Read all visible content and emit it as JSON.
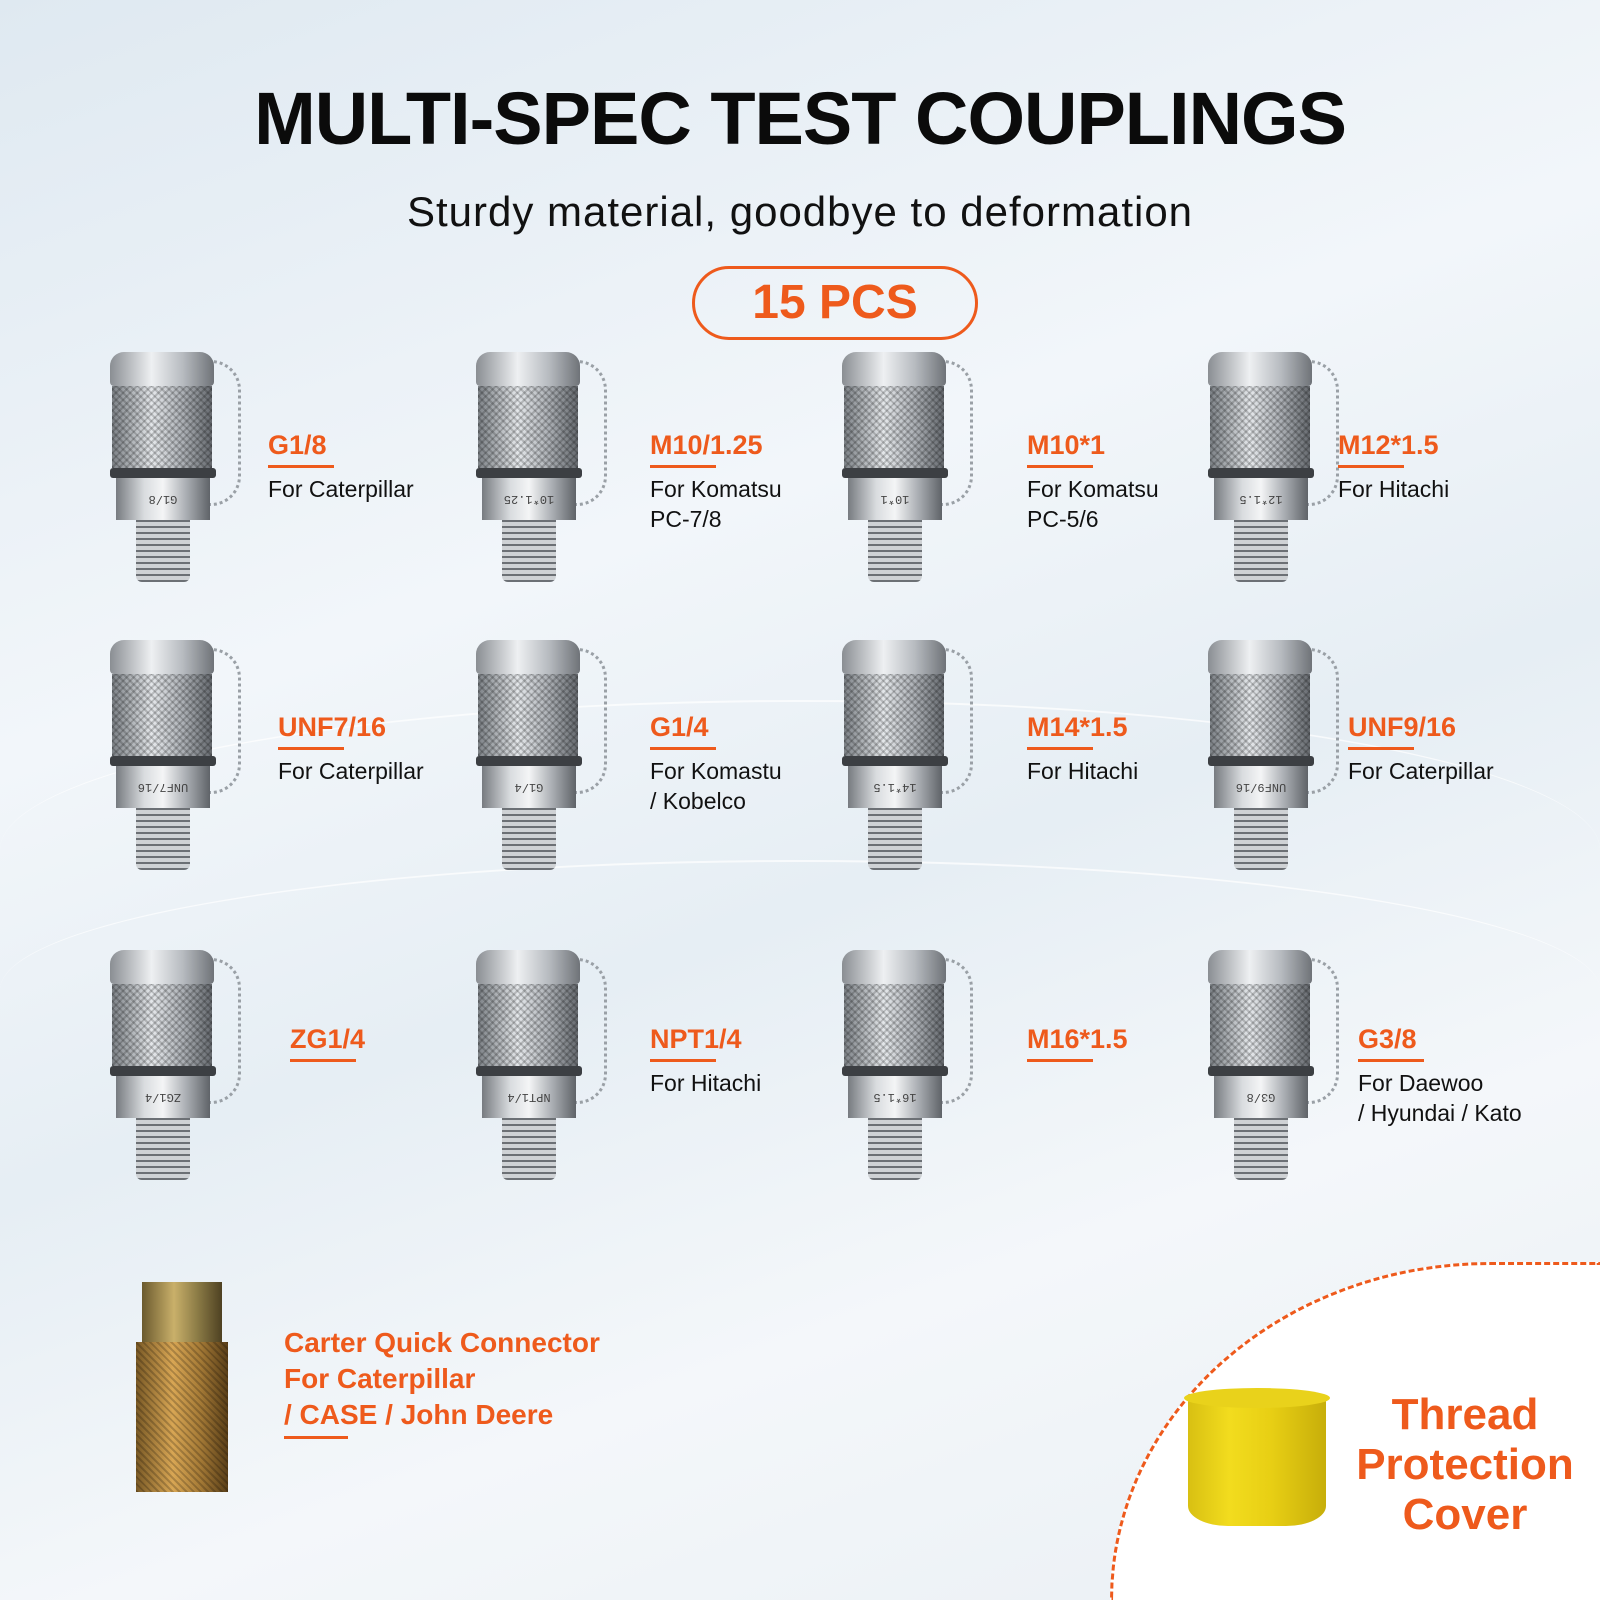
{
  "title": "MULTI-SPEC TEST COUPLINGS",
  "subtitle": "Sturdy material, goodbye to deformation",
  "badge": "15 PCS",
  "accent_color": "#ee5a1c",
  "couplings": [
    {
      "spec": "G1/8",
      "desc": "For Caterpillar",
      "marking": "G1/8"
    },
    {
      "spec": "M10/1.25",
      "desc": "For Komatsu\nPC-7/8",
      "marking": "10*1.25"
    },
    {
      "spec": "M10*1",
      "desc": "For Komatsu\nPC-5/6",
      "marking": "10*1"
    },
    {
      "spec": "M12*1.5",
      "desc": "For Hitachi",
      "marking": "12*1.5"
    },
    {
      "spec": "UNF7/16",
      "desc": "For Caterpillar",
      "marking": "UNF7/16"
    },
    {
      "spec": "G1/4",
      "desc": "For Komastu\n/ Kobelco",
      "marking": "G1/4"
    },
    {
      "spec": "M14*1.5",
      "desc": "For Hitachi",
      "marking": "14*1.5"
    },
    {
      "spec": "UNF9/16",
      "desc": "For Caterpillar",
      "marking": "UNF9/16"
    },
    {
      "spec": "ZG1/4",
      "desc": "",
      "marking": "ZG1/4"
    },
    {
      "spec": "NPT1/4",
      "desc": "For Hitachi",
      "marking": "NPT1/4"
    },
    {
      "spec": "M16*1.5",
      "desc": "",
      "marking": "16*1.5"
    },
    {
      "spec": "G3/8",
      "desc": "For Daewoo\n/ Hyundai / Kato",
      "marking": "G3/8"
    }
  ],
  "carter": {
    "text": "Carter Quick Connector\nFor Caterpillar\n/ CASE / John Deere"
  },
  "cover": {
    "text": "Thread\nProtection\nCover"
  }
}
